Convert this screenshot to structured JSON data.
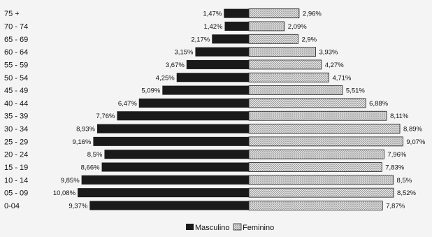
{
  "chart_data": {
    "type": "bar",
    "orientation": "horizontal",
    "layout": "population-pyramid",
    "title": "",
    "xlabel": "",
    "ylabel": "",
    "xlim": [
      0,
      10.08
    ],
    "grid": false,
    "legend_placement": "bottom-center",
    "categories": [
      "75 +",
      "70 - 74",
      "65 - 69",
      "60 - 64",
      "55 - 59",
      "50 - 54",
      "45 - 49",
      "40 - 44",
      "35 - 39",
      "30 - 34",
      "25 - 29",
      "20 - 24",
      "15 - 19",
      "10 - 14",
      "05 - 09",
      "0-04"
    ],
    "series": [
      {
        "name": "Masculino",
        "color": "#1a1a1a",
        "fill": "solid",
        "side": "left",
        "values": [
          1.47,
          1.42,
          2.17,
          3.15,
          3.67,
          4.25,
          5.09,
          6.47,
          7.76,
          8.93,
          9.16,
          8.5,
          8.66,
          9.85,
          10.08,
          9.37
        ],
        "labels": [
          "1,47%",
          "1,42%",
          "2,17%",
          "3,15%",
          "3,67%",
          "4,25%",
          "5,09%",
          "6,47%",
          "7,76%",
          "8,93%",
          "9,16%",
          "8,5%",
          "8,66%",
          "9,85%",
          "10,08%",
          "9,37%"
        ]
      },
      {
        "name": "Feminino",
        "color": "#c8c8c8",
        "fill": "dotted",
        "side": "right",
        "values": [
          2.96,
          2.09,
          2.9,
          3.93,
          4.27,
          4.71,
          5.51,
          6.88,
          8.11,
          8.89,
          9.07,
          7.96,
          7.83,
          8.5,
          8.52,
          7.87
        ],
        "labels": [
          "2,96%",
          "2,09%",
          "2,9%",
          "3,93%",
          "4,27%",
          "4,71%",
          "5,51%",
          "6,88%",
          "8,11%",
          "8,89%",
          "9,07%",
          "7,96%",
          "7,83%",
          "8,5%",
          "8,52%",
          "7,87%"
        ]
      }
    ]
  }
}
